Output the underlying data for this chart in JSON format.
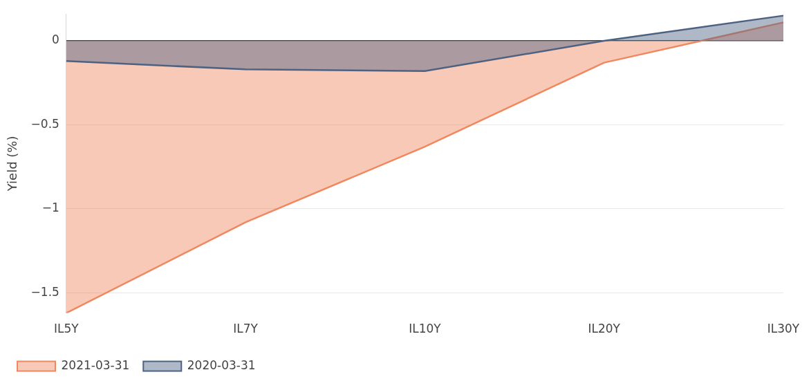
{
  "chart_data": {
    "type": "area",
    "ylabel": "Yield (%)",
    "categories": [
      "IL5Y",
      "IL7Y",
      "IL10Y",
      "IL20Y",
      "IL30Y"
    ],
    "series": [
      {
        "name": "2021-03-31",
        "color": "#f0875f",
        "values": [
          -1.62,
          -1.08,
          -0.63,
          -0.13,
          0.11
        ]
      },
      {
        "name": "2020-03-31",
        "color": "#4d6282",
        "values": [
          -0.12,
          -0.17,
          -0.18,
          0,
          0.15
        ]
      }
    ],
    "ylim": [
      -1.62,
      0.16
    ],
    "yticks": [
      {
        "value": -1.5,
        "label": "−1.5"
      },
      {
        "value": -1,
        "label": "−1"
      },
      {
        "value": -0.5,
        "label": "−0.5"
      },
      0
    ],
    "grid": "y",
    "legend": "bottom",
    "marker": "none",
    "line_style": "solid"
  }
}
